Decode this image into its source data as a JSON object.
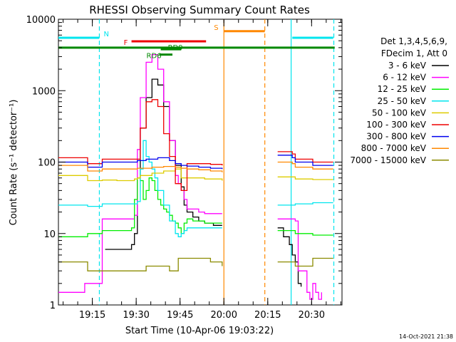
{
  "chart_data": {
    "type": "line",
    "title": "RHESSI Observing Summary Count Rates",
    "xlabel": "Start Time (10-Apr-06 19:03:22)",
    "ylabel": "Count Rate (s⁻¹ detector⁻¹)",
    "yscale": "log",
    "ylim": [
      1,
      10000
    ],
    "xlim_minutes": [
      0,
      97
    ],
    "x_tick_labels": [
      "19:15",
      "19:30",
      "19:45",
      "20:00",
      "20:15",
      "20:30"
    ],
    "x_tick_minutes": [
      11.6,
      26.6,
      41.6,
      56.6,
      71.6,
      86.6
    ],
    "y_tick_labels": [
      "1",
      "10",
      "100",
      "1000",
      "10000"
    ],
    "y_tick_values": [
      1,
      10,
      100,
      1000,
      10000
    ],
    "legend_header": [
      "Det 1,3,4,5,6,9,",
      "FDecim 1, Att 0"
    ],
    "legend_position": "right",
    "footer_date": "14-Oct-2021 21:38",
    "series": [
      {
        "name": "3 - 6 keV",
        "color": "#000000",
        "x": [
          0,
          15,
          16,
          25,
          26,
          27,
          28,
          30,
          32,
          34,
          36,
          38,
          40,
          42,
          43,
          44,
          46,
          48,
          50,
          53,
          56,
          57,
          74,
          75,
          77,
          79,
          80,
          81,
          82,
          83
        ],
        "y": [
          null,
          null,
          6,
          7,
          10,
          60,
          300,
          800,
          1450,
          1200,
          600,
          200,
          90,
          45,
          25,
          20,
          17,
          15,
          14,
          13,
          13,
          null,
          null,
          12,
          9,
          7,
          5,
          4,
          2,
          1.8
        ]
      },
      {
        "name": "6 - 12 keV",
        "color": "#ff00ff",
        "x": [
          0,
          8,
          9,
          14,
          15,
          25,
          26,
          27,
          28,
          30,
          32,
          34,
          36,
          38,
          40,
          41,
          42,
          43,
          44,
          46,
          48,
          50,
          53,
          56,
          57,
          74,
          75,
          80,
          81,
          82,
          85,
          86,
          87,
          88,
          89,
          90,
          94
        ],
        "y": [
          1.5,
          1.5,
          2,
          2,
          16,
          16,
          18,
          150,
          800,
          2500,
          3200,
          2000,
          700,
          200,
          65,
          50,
          40,
          30,
          22,
          22,
          20,
          19,
          19,
          19,
          null,
          null,
          16,
          16,
          15,
          3,
          1.5,
          1.2,
          2,
          1.5,
          1.2,
          1.5,
          null
        ]
      },
      {
        "name": "12 - 25 keV",
        "color": "#00ee00",
        "x": [
          0,
          9,
          10,
          14,
          15,
          24,
          25,
          26,
          27,
          28,
          29,
          30,
          31,
          32,
          33,
          34,
          35,
          36,
          37,
          38,
          39,
          40,
          41,
          42,
          43,
          44,
          46,
          50,
          53,
          56,
          57,
          74,
          75,
          80,
          81,
          86,
          87,
          94
        ],
        "y": [
          9,
          9,
          10,
          10,
          11,
          11,
          12,
          30,
          60,
          55,
          30,
          40,
          60,
          55,
          40,
          30,
          25,
          22,
          20,
          18,
          15,
          14,
          12,
          10,
          14,
          16,
          15,
          14,
          14,
          14,
          null,
          null,
          11,
          11,
          10,
          10,
          9.5,
          9.5
        ]
      },
      {
        "name": "25 - 50 keV",
        "color": "#00e5ee",
        "x": [
          0,
          9,
          10,
          14,
          15,
          26,
          27,
          28,
          29,
          30,
          31,
          32,
          33,
          34,
          36,
          38,
          40,
          41,
          42,
          43,
          44,
          50,
          56,
          57,
          74,
          75,
          80,
          81,
          86,
          87,
          94
        ],
        "y": [
          25,
          25,
          24,
          24,
          26,
          26,
          28,
          80,
          200,
          120,
          100,
          80,
          60,
          40,
          25,
          15,
          10,
          9,
          10,
          11,
          12,
          12,
          12,
          null,
          null,
          25,
          25,
          26,
          26,
          27,
          27
        ]
      },
      {
        "name": "50 - 100 keV",
        "color": "#ddcc00",
        "x": [
          0,
          9,
          10,
          14,
          15,
          20,
          26,
          27,
          28,
          32,
          36,
          40,
          42,
          44,
          50,
          56,
          57,
          74,
          75,
          80,
          81,
          86,
          87,
          94
        ],
        "y": [
          65,
          65,
          55,
          55,
          56,
          55,
          58,
          60,
          65,
          70,
          75,
          80,
          60,
          60,
          58,
          55,
          null,
          null,
          62,
          62,
          58,
          58,
          57,
          57
        ]
      },
      {
        "name": "100 - 300 keV",
        "color": "#ee0000",
        "x": [
          0,
          9,
          10,
          14,
          15,
          26,
          27,
          28,
          30,
          32,
          34,
          36,
          38,
          40,
          42,
          44,
          48,
          52,
          56,
          57,
          74,
          75,
          80,
          81,
          86,
          87,
          94
        ],
        "y": [
          115,
          115,
          95,
          95,
          110,
          110,
          110,
          300,
          700,
          750,
          600,
          250,
          120,
          50,
          40,
          95,
          95,
          93,
          90,
          null,
          null,
          140,
          130,
          110,
          110,
          100,
          100
        ]
      },
      {
        "name": "300 - 800 keV",
        "color": "#0000ee",
        "x": [
          0,
          9,
          10,
          14,
          15,
          26,
          27,
          30,
          34,
          38,
          40,
          42,
          44,
          48,
          52,
          56,
          57,
          74,
          75,
          80,
          81,
          86,
          87,
          94
        ],
        "y": [
          100,
          100,
          85,
          85,
          100,
          100,
          105,
          110,
          115,
          105,
          95,
          90,
          88,
          85,
          82,
          80,
          null,
          null,
          125,
          115,
          100,
          100,
          90,
          90
        ]
      },
      {
        "name": "800 - 7000 keV",
        "color": "#ff8800",
        "x": [
          0,
          9,
          10,
          14,
          15,
          26,
          27,
          32,
          36,
          40,
          42,
          44,
          48,
          52,
          56,
          57,
          74,
          75,
          80,
          81,
          86,
          87,
          94
        ],
        "y": [
          90,
          90,
          75,
          75,
          80,
          80,
          82,
          85,
          87,
          85,
          82,
          80,
          78,
          75,
          72,
          null,
          null,
          100,
          95,
          85,
          85,
          80,
          80
        ]
      },
      {
        "name": "7000 - 15000 keV",
        "color": "#8b8b00",
        "x": [
          0,
          9,
          10,
          14,
          15,
          20,
          26,
          30,
          34,
          38,
          40,
          41,
          42,
          44,
          48,
          52,
          56,
          57,
          74,
          75,
          80,
          81,
          86,
          87,
          94
        ],
        "y": [
          4,
          4,
          3,
          3,
          3,
          3,
          3,
          3.5,
          3.5,
          3,
          3,
          4.5,
          4.5,
          4.5,
          4.5,
          4,
          3.5,
          null,
          null,
          4,
          4,
          3.5,
          3.5,
          4.5,
          4.5
        ]
      }
    ],
    "flag_bars": [
      {
        "label": "N",
        "color": "#00e5ee",
        "segments": [
          [
            0,
            14
          ],
          [
            80,
            94
          ]
        ],
        "y_value": 5500
      },
      {
        "label": "F",
        "color": "#ee0000",
        "segments": [
          [
            25,
            50.5
          ]
        ],
        "y_value": 4900
      },
      {
        "label": "RD9",
        "color": "#008800",
        "segments": [
          [
            35,
            42
          ]
        ],
        "y_value": 3800
      },
      {
        "label": "RD6",
        "color": "#008800",
        "segments": [
          [
            34.5,
            39
          ]
        ],
        "y_value": 3200
      },
      {
        "label": "S",
        "color": "#ff8800",
        "segments": [
          [
            56.6,
            70.6
          ]
        ],
        "y_value": 6800
      },
      {
        "label": "",
        "color": "#008800",
        "segments": [
          [
            0,
            94.5
          ]
        ],
        "y_value": 4000
      }
    ],
    "vertical_lines": [
      {
        "x_minutes": 14,
        "color": "#00e5ee",
        "dashed": true
      },
      {
        "x_minutes": 56.6,
        "color": "#ff8800",
        "dashed": false
      },
      {
        "x_minutes": 70.6,
        "color": "#ff8800",
        "dashed": true
      },
      {
        "x_minutes": 79.6,
        "color": "#00e5ee",
        "dashed": false
      },
      {
        "x_minutes": 94.2,
        "color": "#00e5ee",
        "dashed": true
      }
    ]
  }
}
